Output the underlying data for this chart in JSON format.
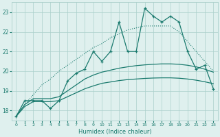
{
  "x": [
    0,
    1,
    2,
    3,
    4,
    5,
    6,
    7,
    8,
    9,
    10,
    11,
    12,
    13,
    14,
    15,
    16,
    17,
    18,
    19,
    20,
    21,
    22,
    23
  ],
  "y_volatile": [
    17.7,
    18.5,
    18.5,
    18.5,
    18.1,
    18.5,
    19.5,
    19.9,
    20.1,
    21.0,
    20.5,
    21.0,
    22.5,
    21.0,
    21.0,
    23.2,
    22.8,
    22.5,
    22.8,
    22.5,
    21.0,
    20.1,
    20.3,
    19.1
  ],
  "y_diagonal": [
    17.7,
    18.3,
    18.8,
    19.3,
    19.6,
    20.0,
    20.3,
    20.6,
    20.9,
    21.2,
    21.4,
    21.7,
    21.9,
    22.1,
    22.2,
    22.3,
    22.3,
    22.3,
    22.3,
    22.0,
    21.5,
    21.0,
    20.5,
    20.0
  ],
  "y_upper_smooth": [
    17.7,
    18.3,
    18.6,
    18.6,
    18.6,
    18.7,
    19.0,
    19.3,
    19.6,
    19.8,
    19.95,
    20.05,
    20.15,
    20.22,
    20.28,
    20.32,
    20.35,
    20.37,
    20.37,
    20.35,
    20.3,
    20.22,
    20.1,
    19.95
  ],
  "y_lower_smooth": [
    17.7,
    18.2,
    18.45,
    18.45,
    18.45,
    18.5,
    18.7,
    18.9,
    19.1,
    19.25,
    19.38,
    19.45,
    19.52,
    19.57,
    19.6,
    19.63,
    19.65,
    19.66,
    19.66,
    19.64,
    19.6,
    19.54,
    19.46,
    19.36
  ],
  "line_color": "#1a7a6e",
  "bg_color": "#dff0ee",
  "grid_color": "#aacfcb",
  "xlabel": "Humidex (Indice chaleur)",
  "ylim": [
    17.5,
    23.5
  ],
  "xlim": [
    -0.5,
    23.5
  ],
  "yticks": [
    18,
    19,
    20,
    21,
    22,
    23
  ],
  "xticks": [
    0,
    1,
    2,
    3,
    4,
    5,
    6,
    7,
    8,
    9,
    10,
    11,
    12,
    13,
    14,
    15,
    16,
    17,
    18,
    19,
    20,
    21,
    22,
    23
  ]
}
